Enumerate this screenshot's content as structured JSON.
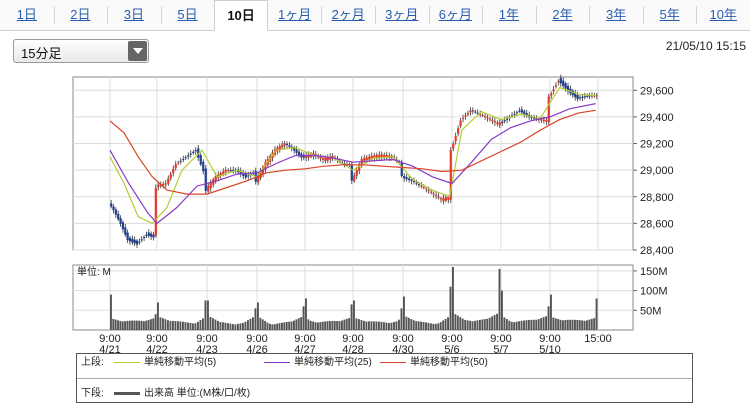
{
  "tabs": [
    {
      "label": "1日",
      "active": false
    },
    {
      "label": "2日",
      "active": false
    },
    {
      "label": "3日",
      "active": false
    },
    {
      "label": "5日",
      "active": false
    },
    {
      "label": "10日",
      "active": true
    },
    {
      "label": "1ヶ月",
      "active": false
    },
    {
      "label": "2ヶ月",
      "active": false
    },
    {
      "label": "3ヶ月",
      "active": false
    },
    {
      "label": "6ヶ月",
      "active": false
    },
    {
      "label": "1年",
      "active": false
    },
    {
      "label": "2年",
      "active": false
    },
    {
      "label": "3年",
      "active": false
    },
    {
      "label": "5年",
      "active": false
    },
    {
      "label": "10年",
      "active": false
    }
  ],
  "interval_select": {
    "value": "15分足"
  },
  "timestamp": "21/05/10 15:15",
  "chart_data": [
    {
      "type": "candlestick-line",
      "panel": "price",
      "x_ticks": [
        {
          "time": "9:00",
          "date": "4/21"
        },
        {
          "time": "9:00",
          "date": "4/22"
        },
        {
          "time": "9:00",
          "date": "4/23"
        },
        {
          "time": "9:00",
          "date": "4/26"
        },
        {
          "time": "9:00",
          "date": "4/27"
        },
        {
          "time": "9:00",
          "date": "4/28"
        },
        {
          "time": "9:00",
          "date": "4/30"
        },
        {
          "time": "9:00",
          "date": "5/6"
        },
        {
          "time": "9:00",
          "date": "5/7"
        },
        {
          "time": "9:00",
          "date": "5/10"
        },
        {
          "time": "15:00",
          "date": ""
        }
      ],
      "y_ticks": [
        "29,600",
        "29,400",
        "29,200",
        "29,000",
        "28,800",
        "28,600",
        "28,400"
      ],
      "ylim": [
        28400,
        29700
      ],
      "grid": true,
      "price_path": [
        [
          0,
          28750
        ],
        [
          0.1,
          28700
        ],
        [
          0.25,
          28600
        ],
        [
          0.4,
          28480
        ],
        [
          0.6,
          28450
        ],
        [
          0.8,
          28520
        ],
        [
          0.95,
          28500
        ],
        [
          1.0,
          28880
        ],
        [
          1.2,
          28900
        ],
        [
          1.4,
          29050
        ],
        [
          1.6,
          29100
        ],
        [
          1.8,
          29150
        ],
        [
          1.95,
          29000
        ],
        [
          2.0,
          28850
        ],
        [
          2.2,
          28950
        ],
        [
          2.4,
          29000
        ],
        [
          2.6,
          29000
        ],
        [
          2.8,
          28950
        ],
        [
          2.95,
          28980
        ],
        [
          3.0,
          28920
        ],
        [
          3.2,
          29050
        ],
        [
          3.4,
          29150
        ],
        [
          3.6,
          29200
        ],
        [
          3.8,
          29150
        ],
        [
          3.95,
          29100
        ],
        [
          4.0,
          29100
        ],
        [
          4.2,
          29120
        ],
        [
          4.4,
          29080
        ],
        [
          4.6,
          29100
        ],
        [
          4.8,
          29050
        ],
        [
          4.95,
          29040
        ],
        [
          5.0,
          28920
        ],
        [
          5.2,
          29080
        ],
        [
          5.4,
          29100
        ],
        [
          5.6,
          29110
        ],
        [
          5.8,
          29100
        ],
        [
          5.95,
          29060
        ],
        [
          6.0,
          28950
        ],
        [
          6.2,
          28920
        ],
        [
          6.4,
          28880
        ],
        [
          6.6,
          28830
        ],
        [
          6.8,
          28780
        ],
        [
          6.95,
          28790
        ],
        [
          7.0,
          29150
        ],
        [
          7.2,
          29380
        ],
        [
          7.4,
          29450
        ],
        [
          7.6,
          29420
        ],
        [
          7.8,
          29380
        ],
        [
          7.95,
          29350
        ],
        [
          8.0,
          29350
        ],
        [
          8.2,
          29400
        ],
        [
          8.4,
          29450
        ],
        [
          8.6,
          29400
        ],
        [
          8.8,
          29380
        ],
        [
          8.95,
          29370
        ],
        [
          9.0,
          29550
        ],
        [
          9.2,
          29680
        ],
        [
          9.4,
          29600
        ],
        [
          9.6,
          29540
        ],
        [
          9.8,
          29560
        ],
        [
          9.95,
          29560
        ]
      ],
      "series": [
        {
          "name": "単純移動平均(5)",
          "color": "#b5cc33",
          "points": [
            [
              0,
              29100
            ],
            [
              0.3,
              28900
            ],
            [
              0.6,
              28650
            ],
            [
              0.9,
              28600
            ],
            [
              1.2,
              28720
            ],
            [
              1.5,
              29000
            ],
            [
              1.9,
              29150
            ],
            [
              2.2,
              28950
            ],
            [
              2.6,
              29000
            ],
            [
              3.0,
              28950
            ],
            [
              3.4,
              29150
            ],
            [
              3.8,
              29170
            ],
            [
              4.2,
              29110
            ],
            [
              4.6,
              29090
            ],
            [
              5.0,
              29000
            ],
            [
              5.4,
              29090
            ],
            [
              5.8,
              29100
            ],
            [
              6.2,
              28930
            ],
            [
              6.6,
              28850
            ],
            [
              6.95,
              28800
            ],
            [
              7.2,
              29300
            ],
            [
              7.6,
              29440
            ],
            [
              8.0,
              29380
            ],
            [
              8.4,
              29420
            ],
            [
              8.8,
              29390
            ],
            [
              9.2,
              29620
            ],
            [
              9.6,
              29570
            ],
            [
              9.95,
              29560
            ]
          ]
        },
        {
          "name": "単純移動平均(25)",
          "color": "#8b39c8",
          "points": [
            [
              0,
              29150
            ],
            [
              0.4,
              28900
            ],
            [
              0.8,
              28680
            ],
            [
              1.0,
              28600
            ],
            [
              1.4,
              28720
            ],
            [
              1.8,
              28880
            ],
            [
              2.2,
              28920
            ],
            [
              2.6,
              28970
            ],
            [
              3.0,
              28980
            ],
            [
              3.4,
              29050
            ],
            [
              3.8,
              29110
            ],
            [
              4.2,
              29110
            ],
            [
              4.6,
              29090
            ],
            [
              5.0,
              29060
            ],
            [
              5.4,
              29070
            ],
            [
              5.8,
              29080
            ],
            [
              6.2,
              29030
            ],
            [
              6.6,
              28950
            ],
            [
              7.0,
              28900
            ],
            [
              7.4,
              29060
            ],
            [
              7.8,
              29230
            ],
            [
              8.2,
              29320
            ],
            [
              8.6,
              29370
            ],
            [
              9.0,
              29400
            ],
            [
              9.4,
              29460
            ],
            [
              9.95,
              29500
            ]
          ]
        },
        {
          "name": "単純移動平均(50)",
          "color": "#d9442a",
          "points": [
            [
              0,
              29370
            ],
            [
              0.3,
              29280
            ],
            [
              0.6,
              29100
            ],
            [
              0.9,
              28950
            ],
            [
              1.2,
              28850
            ],
            [
              1.6,
              28820
            ],
            [
              2.0,
              28820
            ],
            [
              2.4,
              28870
            ],
            [
              2.8,
              28920
            ],
            [
              3.2,
              28980
            ],
            [
              3.6,
              29000
            ],
            [
              4.0,
              29010
            ],
            [
              4.4,
              29030
            ],
            [
              4.8,
              29040
            ],
            [
              5.2,
              29040
            ],
            [
              5.6,
              29030
            ],
            [
              6.0,
              29020
            ],
            [
              6.4,
              29010
            ],
            [
              6.8,
              28990
            ],
            [
              7.2,
              29000
            ],
            [
              7.6,
              29070
            ],
            [
              8.0,
              29140
            ],
            [
              8.4,
              29210
            ],
            [
              8.8,
              29300
            ],
            [
              9.2,
              29380
            ],
            [
              9.6,
              29430
            ],
            [
              9.95,
              29450
            ]
          ]
        }
      ]
    },
    {
      "type": "bar",
      "panel": "volume",
      "unit_label": "単位: M",
      "y_ticks": [
        "150M",
        "100M",
        "50M"
      ],
      "ylim": [
        0,
        165
      ],
      "grid": true,
      "sessions": [
        {
          "day": 0,
          "open": 90,
          "close": 40,
          "base": 16
        },
        {
          "day": 1,
          "open": 70,
          "close": 75,
          "base": 15
        },
        {
          "day": 2,
          "open": 75,
          "close": 55,
          "base": 14
        },
        {
          "day": 3,
          "open": 70,
          "close": 60,
          "base": 14
        },
        {
          "day": 4,
          "open": 80,
          "close": 65,
          "base": 15
        },
        {
          "day": 5,
          "open": 75,
          "close": 55,
          "base": 14
        },
        {
          "day": 6,
          "open": 85,
          "close": 110,
          "base": 15
        },
        {
          "day": 7,
          "open": 160,
          "close": 155,
          "base": 22
        },
        {
          "day": 8,
          "open": 100,
          "close": 60,
          "base": 18
        },
        {
          "day": 9,
          "open": 90,
          "close": 80,
          "base": 18
        }
      ]
    }
  ],
  "legend": {
    "upper_label": "上段:",
    "lower_label": "下段:",
    "items": [
      {
        "name": "単純移動平均(5)",
        "color": "#b5cc33"
      },
      {
        "name": "単純移動平均(25)",
        "color": "#8b39c8"
      },
      {
        "name": "単純移動平均(50)",
        "color": "#d9442a"
      }
    ],
    "volume_item": "出来高 単位:(M株/口/枚)"
  }
}
